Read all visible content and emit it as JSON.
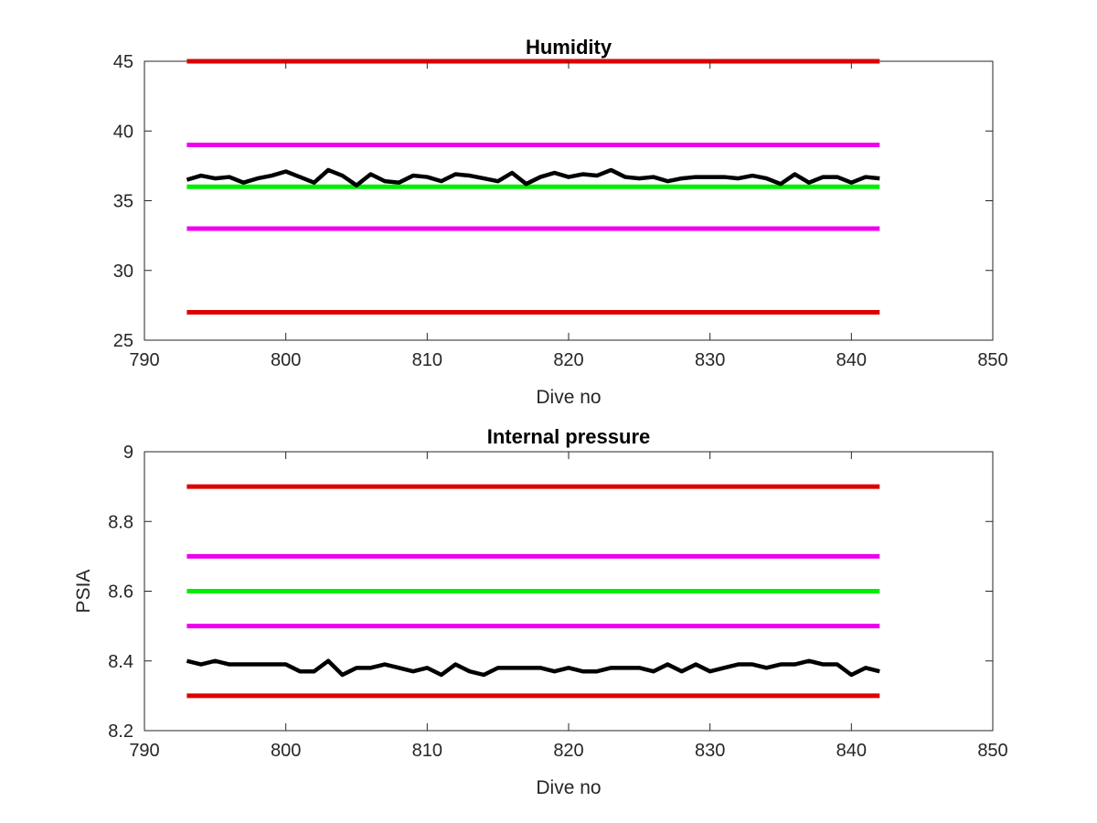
{
  "chart_data": [
    {
      "type": "line",
      "title": "Humidity",
      "xlabel": "Dive no",
      "ylabel": "",
      "xlim": [
        790,
        850
      ],
      "ylim": [
        25,
        45
      ],
      "xticks": [
        790,
        800,
        810,
        820,
        830,
        840,
        850
      ],
      "xtick_labels": [
        "790",
        "800",
        "810",
        "820",
        "830",
        "840",
        "850"
      ],
      "yticks": [
        25,
        30,
        35,
        40,
        45
      ],
      "ytick_labels": [
        "25",
        "30",
        "35",
        "40",
        "45"
      ],
      "grid": false,
      "legend": "none",
      "reference_lines": [
        {
          "color": "#dd0000",
          "x": [
            793,
            842
          ],
          "y": 45
        },
        {
          "color": "#ee00ee",
          "x": [
            793,
            842
          ],
          "y": 39
        },
        {
          "color": "#00ee00",
          "x": [
            793,
            842
          ],
          "y": 36
        },
        {
          "color": "#ee00ee",
          "x": [
            793,
            842
          ],
          "y": 33
        },
        {
          "color": "#dd0000",
          "x": [
            793,
            842
          ],
          "y": 27
        }
      ],
      "series": [
        {
          "color": "#000000",
          "x": [
            793,
            794,
            795,
            796,
            797,
            798,
            799,
            800,
            801,
            802,
            803,
            804,
            805,
            806,
            807,
            808,
            809,
            810,
            811,
            812,
            813,
            814,
            815,
            816,
            817,
            818,
            819,
            820,
            821,
            822,
            823,
            824,
            825,
            826,
            827,
            828,
            829,
            830,
            831,
            832,
            833,
            834,
            835,
            836,
            837,
            838,
            839,
            840,
            841,
            842
          ],
          "values": [
            36.5,
            36.8,
            36.6,
            36.7,
            36.3,
            36.6,
            36.8,
            37.1,
            36.7,
            36.3,
            37.2,
            36.8,
            36.1,
            36.9,
            36.4,
            36.3,
            36.8,
            36.7,
            36.4,
            36.9,
            36.8,
            36.6,
            36.4,
            37.0,
            36.2,
            36.7,
            37.0,
            36.7,
            36.9,
            36.8,
            37.2,
            36.7,
            36.6,
            36.7,
            36.4,
            36.6,
            36.7,
            36.7,
            36.7,
            36.6,
            36.8,
            36.6,
            36.2,
            36.9,
            36.3,
            36.7,
            36.7,
            36.3,
            36.7,
            36.6
          ]
        }
      ]
    },
    {
      "type": "line",
      "title": "Internal pressure",
      "xlabel": "Dive no",
      "ylabel": "PSIA",
      "xlim": [
        790,
        850
      ],
      "ylim": [
        8.2,
        9.0
      ],
      "xticks": [
        790,
        800,
        810,
        820,
        830,
        840,
        850
      ],
      "xtick_labels": [
        "790",
        "800",
        "810",
        "820",
        "830",
        "840",
        "850"
      ],
      "yticks": [
        8.2,
        8.4,
        8.6,
        8.8,
        9.0
      ],
      "ytick_labels": [
        "8.2",
        "8.4",
        "8.6",
        "8.8",
        "9"
      ],
      "grid": false,
      "legend": "none",
      "reference_lines": [
        {
          "color": "#dd0000",
          "x": [
            793,
            842
          ],
          "y": 8.9
        },
        {
          "color": "#ee00ee",
          "x": [
            793,
            842
          ],
          "y": 8.7
        },
        {
          "color": "#00ee00",
          "x": [
            793,
            842
          ],
          "y": 8.6
        },
        {
          "color": "#ee00ee",
          "x": [
            793,
            842
          ],
          "y": 8.5
        },
        {
          "color": "#dd0000",
          "x": [
            793,
            842
          ],
          "y": 8.3
        }
      ],
      "series": [
        {
          "color": "#000000",
          "x": [
            793,
            794,
            795,
            796,
            797,
            798,
            799,
            800,
            801,
            802,
            803,
            804,
            805,
            806,
            807,
            808,
            809,
            810,
            811,
            812,
            813,
            814,
            815,
            816,
            817,
            818,
            819,
            820,
            821,
            822,
            823,
            824,
            825,
            826,
            827,
            828,
            829,
            830,
            831,
            832,
            833,
            834,
            835,
            836,
            837,
            838,
            839,
            840,
            841,
            842
          ],
          "values": [
            8.4,
            8.39,
            8.4,
            8.39,
            8.39,
            8.39,
            8.39,
            8.39,
            8.37,
            8.37,
            8.4,
            8.36,
            8.38,
            8.38,
            8.39,
            8.38,
            8.37,
            8.38,
            8.36,
            8.39,
            8.37,
            8.36,
            8.38,
            8.38,
            8.38,
            8.38,
            8.37,
            8.38,
            8.37,
            8.37,
            8.38,
            8.38,
            8.38,
            8.37,
            8.39,
            8.37,
            8.39,
            8.37,
            8.38,
            8.39,
            8.39,
            8.38,
            8.39,
            8.39,
            8.4,
            8.39,
            8.39,
            8.36,
            8.38,
            8.37
          ]
        }
      ]
    }
  ]
}
